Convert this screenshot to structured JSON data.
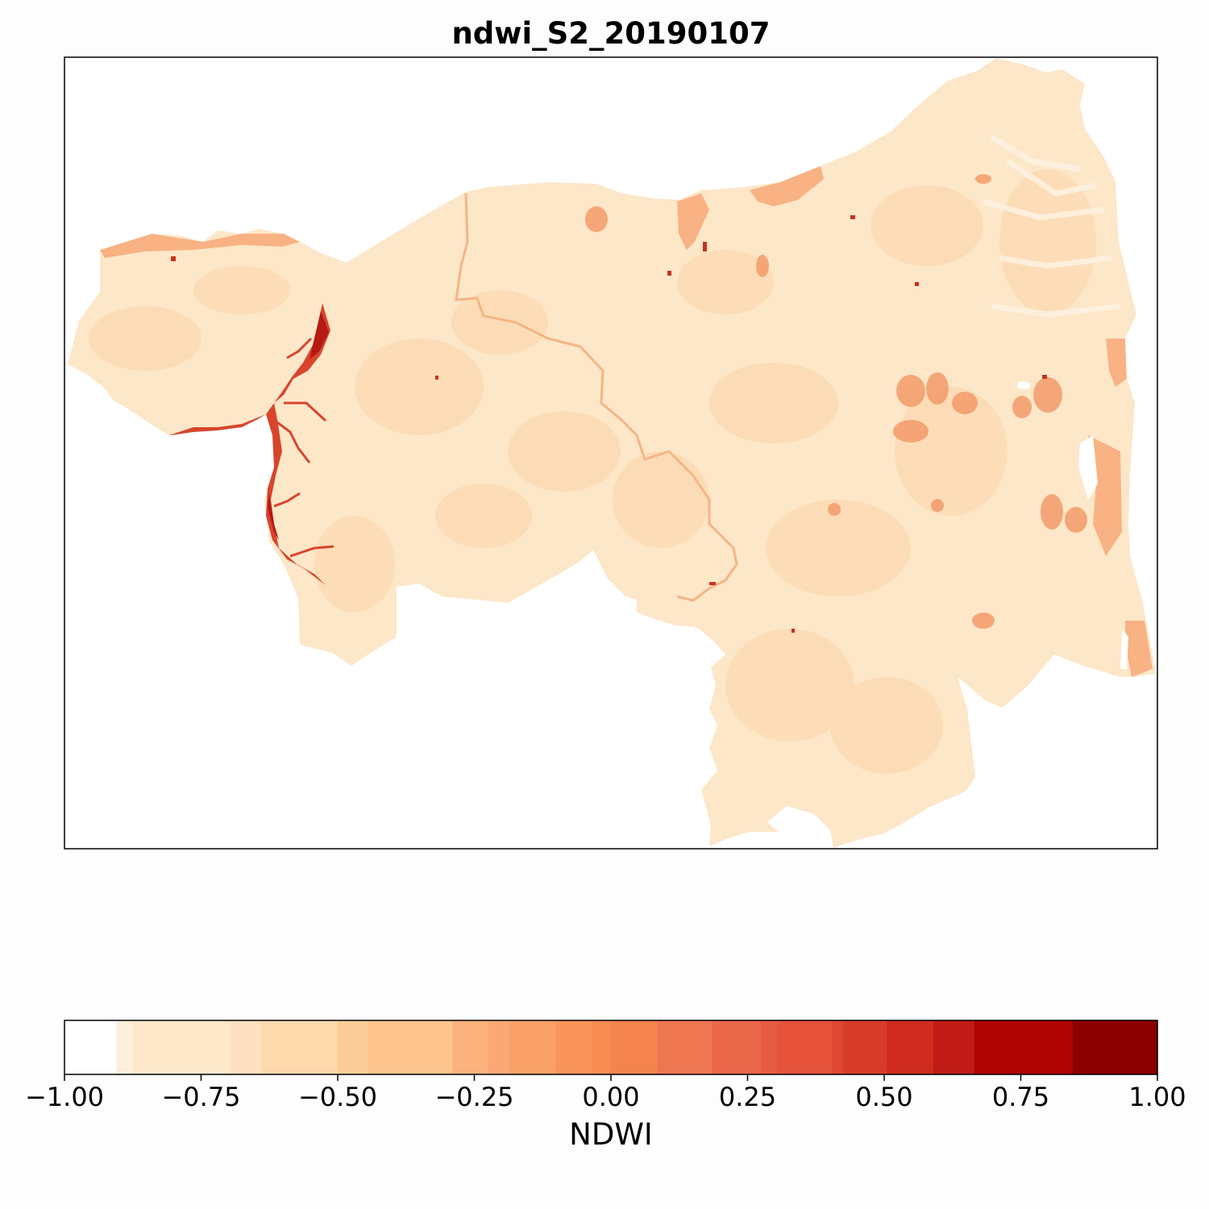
{
  "title": "ndwi_S2_20190107",
  "colorbar": {
    "label": "NDWI",
    "min": -1.0,
    "max": 1.0,
    "ticks": [
      "−1.00",
      "−0.75",
      "−0.50",
      "−0.25",
      "0.00",
      "0.25",
      "0.50",
      "0.75",
      "1.00"
    ],
    "tick_values": [
      -1.0,
      -0.75,
      -0.5,
      -0.25,
      0.0,
      0.25,
      0.5,
      0.75,
      1.0
    ],
    "bins": [
      {
        "from": -1.0,
        "to": -0.905,
        "color": "#ffffff"
      },
      {
        "from": -0.905,
        "to": -0.875,
        "color": "#fdeedd"
      },
      {
        "from": -0.875,
        "to": -0.695,
        "color": "#fde8ca"
      },
      {
        "from": -0.695,
        "to": -0.64,
        "color": "#fde0bf"
      },
      {
        "from": -0.64,
        "to": -0.5,
        "color": "#fdd9ac"
      },
      {
        "from": -0.5,
        "to": -0.445,
        "color": "#fdcd98"
      },
      {
        "from": -0.445,
        "to": -0.29,
        "color": "#fdc48e"
      },
      {
        "from": -0.29,
        "to": -0.225,
        "color": "#fbb27c"
      },
      {
        "from": -0.225,
        "to": -0.185,
        "color": "#fba877"
      },
      {
        "from": -0.185,
        "to": -0.1,
        "color": "#f9a068"
      },
      {
        "from": -0.1,
        "to": -0.035,
        "color": "#f8935a"
      },
      {
        "from": -0.035,
        "to": -0.0,
        "color": "#f88d52"
      },
      {
        "from": 0.0,
        "to": 0.085,
        "color": "#f5834d"
      },
      {
        "from": 0.085,
        "to": 0.185,
        "color": "#ee7752"
      },
      {
        "from": 0.185,
        "to": 0.275,
        "color": "#ea674a"
      },
      {
        "from": 0.275,
        "to": 0.305,
        "color": "#e65c42"
      },
      {
        "from": 0.305,
        "to": 0.405,
        "color": "#e5533b"
      },
      {
        "from": 0.405,
        "to": 0.425,
        "color": "#df4732"
      },
      {
        "from": 0.425,
        "to": 0.505,
        "color": "#d93b29"
      },
      {
        "from": 0.505,
        "to": 0.59,
        "color": "#cf2b1f"
      },
      {
        "from": 0.59,
        "to": 0.665,
        "color": "#c11b15"
      },
      {
        "from": 0.665,
        "to": 0.845,
        "color": "#af0303"
      },
      {
        "from": 0.845,
        "to": 1.0,
        "color": "#8c0100"
      }
    ]
  },
  "map_colors": {
    "background": "#ffffff",
    "land_dry": "#fde7c9",
    "land_mid": "#fddcb6",
    "land_wet": "#fbbf8a",
    "moist_patch": "#f4a071",
    "reservoir": "#d7452c",
    "reservoir_deep": "#b51a13"
  }
}
